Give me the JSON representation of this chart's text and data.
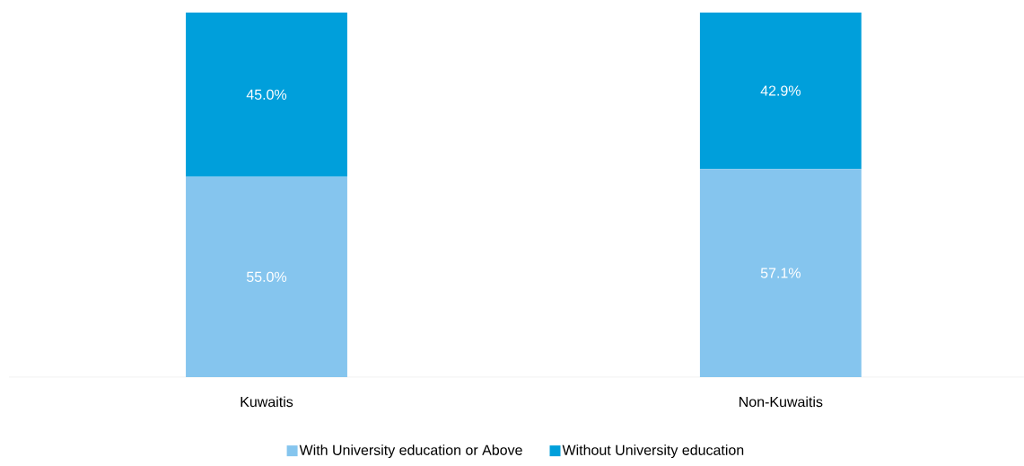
{
  "chart_data": {
    "type": "bar",
    "stacked": true,
    "categories": [
      "Kuwaitis",
      "Non-Kuwaitis"
    ],
    "series": [
      {
        "name": "With University education or Above",
        "color": "#85c5ee",
        "values": [
          55.0,
          57.1
        ],
        "value_labels": [
          "55.0%",
          "57.1%"
        ]
      },
      {
        "name": "Without University education",
        "color": "#009fdb",
        "values": [
          45.0,
          42.9
        ],
        "value_labels": [
          "45.0%",
          "42.9%"
        ]
      }
    ],
    "ylim": [
      0,
      100
    ],
    "tick_labels": "x",
    "legend": "bottom"
  }
}
